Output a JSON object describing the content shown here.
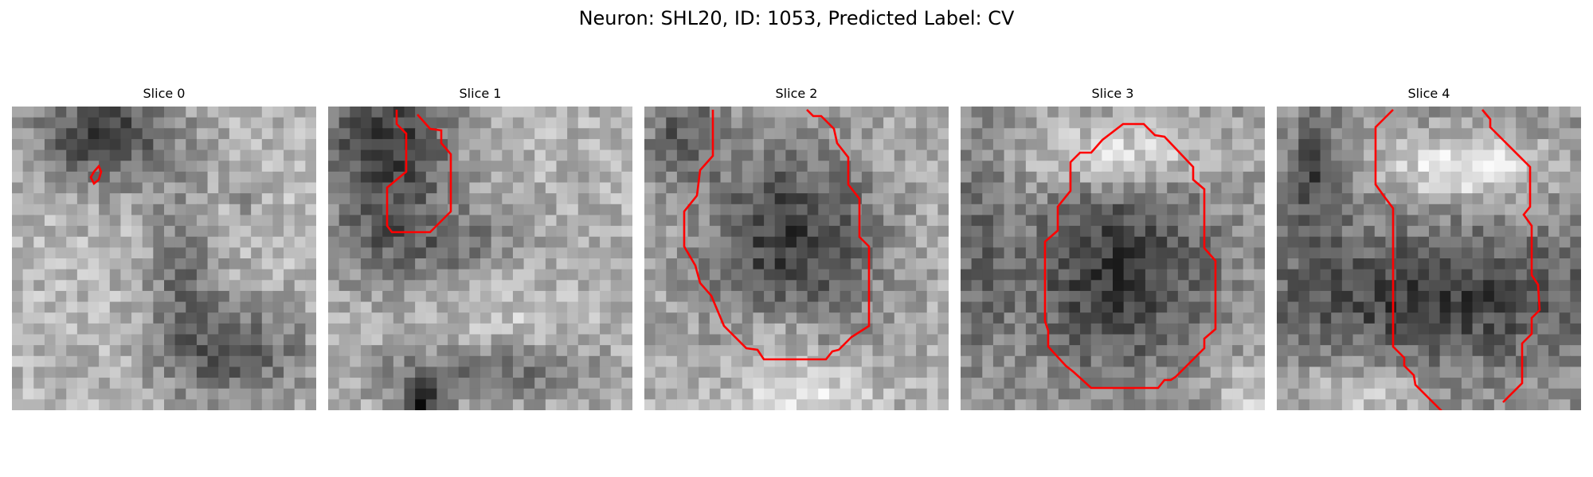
{
  "figure": {
    "title": "Neuron: SHL20, ID: 1053, Predicted Label: CV"
  },
  "colors": {
    "contour": "#ff0000",
    "background": "#ffffff"
  },
  "slices": [
    {
      "title": "Slice 0"
    },
    {
      "title": "Slice 1"
    },
    {
      "title": "Slice 2"
    },
    {
      "title": "Slice 3"
    },
    {
      "title": "Slice 4"
    }
  ]
}
